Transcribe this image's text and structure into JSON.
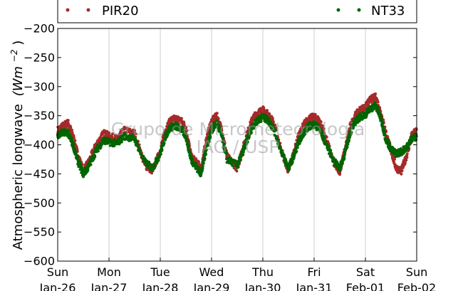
{
  "chart_data": {
    "type": "scatter",
    "ylabel": "Atmospheric longwave",
    "ylabel_unit": "(Wm",
    "ylabel_unit_exp": "−2",
    "ylabel_unit_close": ")",
    "ylim": [
      -600,
      -200
    ],
    "yticks": [
      -200,
      -250,
      -300,
      -350,
      -400,
      -450,
      -500,
      -550,
      -600
    ],
    "ytick_labels": [
      "−200",
      "−250",
      "−300",
      "−350",
      "−400",
      "−450",
      "−500",
      "−550",
      "−600"
    ],
    "xlim": [
      0,
      7
    ],
    "xticks": [
      {
        "day": "Sun",
        "date": "Jan-26"
      },
      {
        "day": "Mon",
        "date": "Jan-27"
      },
      {
        "day": "Tue",
        "date": "Jan-28"
      },
      {
        "day": "Wed",
        "date": "Jan-29"
      },
      {
        "day": "Thu",
        "date": "Jan-30"
      },
      {
        "day": "Fri",
        "date": "Jan-31"
      },
      {
        "day": "Sat",
        "date": "Feb-01"
      },
      {
        "day": "Sun",
        "date": "Feb-02"
      }
    ],
    "grid": "vertical",
    "legend_placement": "top",
    "watermark_lines": [
      "Grupo de Micrometeorologia",
      "IAG / USP"
    ],
    "series": [
      {
        "name": "PIR20",
        "color": "#a52a2a",
        "x_days_from_jan26": [
          0,
          0.1,
          0.2,
          0.3,
          0.4,
          0.5,
          0.6,
          0.75,
          0.9,
          1.0,
          1.15,
          1.3,
          1.5,
          1.7,
          1.85,
          2.0,
          2.1,
          2.2,
          2.3,
          2.4,
          2.5,
          2.6,
          2.7,
          2.8,
          2.9,
          3.0,
          3.1,
          3.2,
          3.3,
          3.5,
          3.6,
          3.7,
          3.8,
          3.9,
          4.0,
          4.1,
          4.2,
          4.4,
          4.5,
          4.6,
          4.7,
          4.8,
          4.9,
          5.0,
          5.1,
          5.2,
          5.4,
          5.5,
          5.6,
          5.7,
          5.8,
          5.9,
          6.0,
          6.1,
          6.2,
          6.3,
          6.4,
          6.5,
          6.6,
          6.7,
          6.8,
          6.9,
          7.0
        ],
        "y": [
          -375,
          -368,
          -362,
          -385,
          -420,
          -445,
          -430,
          -400,
          -380,
          -385,
          -390,
          -375,
          -380,
          -435,
          -445,
          -410,
          -375,
          -358,
          -355,
          -358,
          -370,
          -420,
          -430,
          -440,
          -390,
          -360,
          -350,
          -375,
          -420,
          -440,
          -410,
          -380,
          -355,
          -345,
          -340,
          -348,
          -360,
          -420,
          -445,
          -415,
          -385,
          -365,
          -355,
          -352,
          -358,
          -380,
          -435,
          -445,
          -410,
          -370,
          -350,
          -340,
          -335,
          -322,
          -318,
          -345,
          -380,
          -410,
          -440,
          -445,
          -420,
          -385,
          -375
        ]
      },
      {
        "name": "NT33",
        "color": "#006400",
        "x_days_from_jan26": [
          0,
          0.1,
          0.2,
          0.3,
          0.4,
          0.5,
          0.6,
          0.75,
          0.9,
          1.0,
          1.15,
          1.3,
          1.5,
          1.7,
          1.85,
          2.0,
          2.1,
          2.2,
          2.3,
          2.4,
          2.5,
          2.6,
          2.7,
          2.8,
          2.9,
          3.0,
          3.1,
          3.2,
          3.3,
          3.5,
          3.6,
          3.7,
          3.8,
          3.9,
          4.0,
          4.1,
          4.2,
          4.4,
          4.5,
          4.6,
          4.7,
          4.8,
          4.9,
          5.0,
          5.1,
          5.2,
          5.4,
          5.5,
          5.6,
          5.7,
          5.8,
          5.9,
          6.0,
          6.1,
          6.2,
          6.3,
          6.4,
          6.5,
          6.6,
          6.7,
          6.8,
          6.9,
          7.0
        ],
        "y": [
          -385,
          -378,
          -380,
          -400,
          -430,
          -450,
          -438,
          -410,
          -392,
          -395,
          -398,
          -385,
          -390,
          -430,
          -440,
          -415,
          -385,
          -370,
          -368,
          -372,
          -385,
          -425,
          -438,
          -450,
          -405,
          -375,
          -362,
          -385,
          -425,
          -435,
          -415,
          -390,
          -368,
          -358,
          -352,
          -358,
          -370,
          -420,
          -440,
          -420,
          -395,
          -378,
          -368,
          -365,
          -372,
          -392,
          -430,
          -440,
          -415,
          -380,
          -360,
          -352,
          -348,
          -338,
          -332,
          -355,
          -390,
          -408,
          -415,
          -412,
          -405,
          -390,
          -385
        ]
      }
    ]
  }
}
